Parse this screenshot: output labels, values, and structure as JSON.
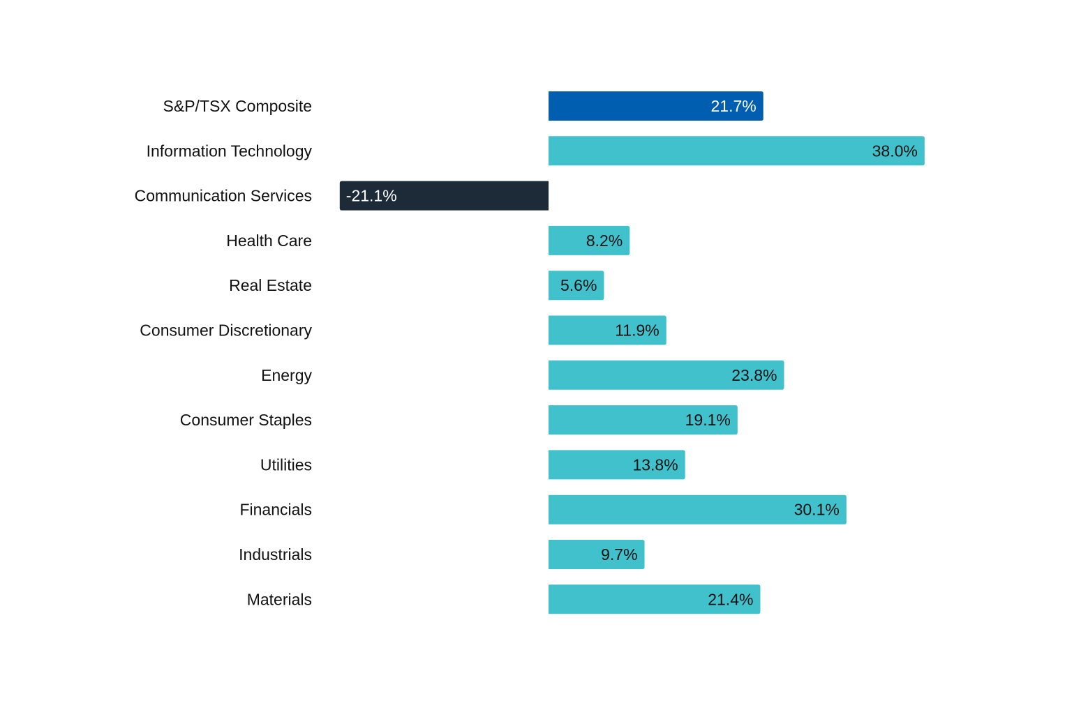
{
  "chart_data": {
    "type": "bar",
    "orientation": "horizontal",
    "title": "",
    "xlabel": "",
    "ylabel": "",
    "categories": [
      "S&P/TSX Composite",
      "Information Technology",
      "Communication Services",
      "Health Care",
      "Real Estate",
      "Consumer Discretionary",
      "Energy",
      "Consumer Staples",
      "Utilities",
      "Financials",
      "Industrials",
      "Materials"
    ],
    "values": [
      21.7,
      38.0,
      -21.1,
      8.2,
      5.6,
      11.9,
      23.8,
      19.1,
      13.8,
      30.1,
      9.7,
      21.4
    ],
    "value_labels": [
      "21.7%",
      "38.0%",
      "-21.1%",
      "8.2%",
      "5.6%",
      "11.9%",
      "23.8%",
      "19.1%",
      "13.8%",
      "30.1%",
      "9.7%",
      "21.4%"
    ],
    "unit": "%",
    "xlim": [
      -21.1,
      38.0
    ],
    "grid": false,
    "legend": "none",
    "colors": {
      "index": "#005EB0",
      "positive": "#41C1CB",
      "negative": "#1C2B37",
      "label_on_dark": "#FFFFFF",
      "label_on_light": "#111111"
    }
  }
}
